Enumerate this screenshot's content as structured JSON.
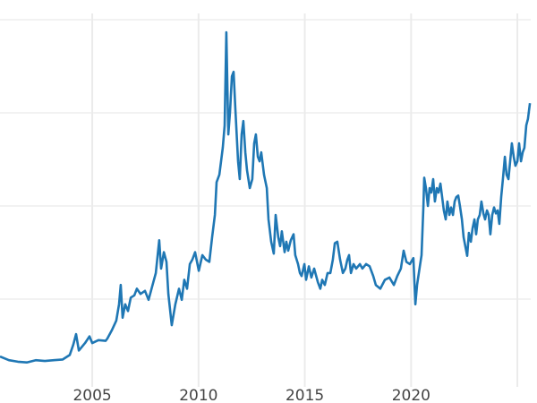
{
  "chart_data": {
    "type": "line",
    "title": "",
    "xlabel": "",
    "ylabel": "",
    "xlim": [
      2000.66,
      2025.6
    ],
    "ylim": [
      0,
      51.5
    ],
    "x_ticks": [
      2005,
      2010,
      2015,
      2020,
      2025
    ],
    "x_tick_labels": [
      "2005",
      "2010",
      "2015",
      "2020",
      ""
    ],
    "y_gridlines": [
      12.5,
      25,
      37.5,
      50
    ],
    "grid": true,
    "legend": "none",
    "line_color": "#1f77b4",
    "grid_color": "#ebebeb",
    "series": [
      {
        "points": [
          [
            2000.66,
            4.8
          ],
          [
            2001.08,
            4.3
          ],
          [
            2001.5,
            4.1
          ],
          [
            2001.92,
            4.0
          ],
          [
            2002.34,
            4.3
          ],
          [
            2002.77,
            4.2
          ],
          [
            2003.19,
            4.3
          ],
          [
            2003.61,
            4.4
          ],
          [
            2003.94,
            5.0
          ],
          [
            2004.11,
            6.4
          ],
          [
            2004.24,
            7.8
          ],
          [
            2004.37,
            5.6
          ],
          [
            2004.66,
            6.6
          ],
          [
            2004.87,
            7.5
          ],
          [
            2005.0,
            6.6
          ],
          [
            2005.29,
            7.0
          ],
          [
            2005.63,
            6.9
          ],
          [
            2005.71,
            7.2
          ],
          [
            2005.92,
            8.3
          ],
          [
            2006.13,
            9.6
          ],
          [
            2006.26,
            11.8
          ],
          [
            2006.34,
            14.4
          ],
          [
            2006.43,
            10.0
          ],
          [
            2006.55,
            11.8
          ],
          [
            2006.68,
            10.9
          ],
          [
            2006.81,
            12.7
          ],
          [
            2006.98,
            13.0
          ],
          [
            2007.1,
            13.9
          ],
          [
            2007.27,
            13.2
          ],
          [
            2007.48,
            13.6
          ],
          [
            2007.65,
            12.4
          ],
          [
            2007.82,
            14.2
          ],
          [
            2007.99,
            16.0
          ],
          [
            2008.15,
            20.4
          ],
          [
            2008.24,
            16.6
          ],
          [
            2008.37,
            18.8
          ],
          [
            2008.49,
            17.5
          ],
          [
            2008.58,
            13.2
          ],
          [
            2008.74,
            9.0
          ],
          [
            2008.91,
            11.8
          ],
          [
            2009.08,
            13.9
          ],
          [
            2009.21,
            12.4
          ],
          [
            2009.33,
            15.1
          ],
          [
            2009.46,
            13.9
          ],
          [
            2009.59,
            17.2
          ],
          [
            2009.71,
            17.8
          ],
          [
            2009.84,
            18.8
          ],
          [
            2010.01,
            16.3
          ],
          [
            2010.18,
            18.4
          ],
          [
            2010.34,
            17.8
          ],
          [
            2010.51,
            17.5
          ],
          [
            2010.64,
            20.8
          ],
          [
            2010.77,
            23.8
          ],
          [
            2010.85,
            28.2
          ],
          [
            2010.98,
            29.2
          ],
          [
            2011.06,
            31.0
          ],
          [
            2011.14,
            32.8
          ],
          [
            2011.23,
            35.8
          ],
          [
            2011.31,
            48.3
          ],
          [
            2011.4,
            34.6
          ],
          [
            2011.48,
            37.6
          ],
          [
            2011.57,
            42.4
          ],
          [
            2011.65,
            43.0
          ],
          [
            2011.73,
            38.2
          ],
          [
            2011.86,
            31.0
          ],
          [
            2011.94,
            28.6
          ],
          [
            2012.03,
            34.6
          ],
          [
            2012.11,
            36.4
          ],
          [
            2012.2,
            32.2
          ],
          [
            2012.28,
            29.8
          ],
          [
            2012.41,
            27.4
          ],
          [
            2012.53,
            28.6
          ],
          [
            2012.62,
            33.4
          ],
          [
            2012.7,
            34.6
          ],
          [
            2012.79,
            31.6
          ],
          [
            2012.87,
            31.0
          ],
          [
            2012.95,
            32.2
          ],
          [
            2013.08,
            29.2
          ],
          [
            2013.21,
            27.4
          ],
          [
            2013.29,
            23.2
          ],
          [
            2013.42,
            20.2
          ],
          [
            2013.54,
            18.6
          ],
          [
            2013.63,
            23.8
          ],
          [
            2013.75,
            20.8
          ],
          [
            2013.84,
            19.6
          ],
          [
            2013.92,
            21.6
          ],
          [
            2014.05,
            18.8
          ],
          [
            2014.13,
            20.2
          ],
          [
            2014.22,
            19.0
          ],
          [
            2014.34,
            20.4
          ],
          [
            2014.47,
            21.2
          ],
          [
            2014.55,
            18.4
          ],
          [
            2014.68,
            17.2
          ],
          [
            2014.77,
            16.0
          ],
          [
            2014.85,
            15.6
          ],
          [
            2014.98,
            17.2
          ],
          [
            2015.06,
            15.1
          ],
          [
            2015.19,
            16.9
          ],
          [
            2015.31,
            15.4
          ],
          [
            2015.44,
            16.6
          ],
          [
            2015.61,
            14.8
          ],
          [
            2015.73,
            13.9
          ],
          [
            2015.82,
            15.1
          ],
          [
            2015.94,
            14.4
          ],
          [
            2016.07,
            16.0
          ],
          [
            2016.2,
            16.0
          ],
          [
            2016.32,
            17.8
          ],
          [
            2016.41,
            20.0
          ],
          [
            2016.53,
            20.2
          ],
          [
            2016.66,
            17.8
          ],
          [
            2016.79,
            16.0
          ],
          [
            2016.91,
            16.6
          ],
          [
            2017.0,
            17.8
          ],
          [
            2017.08,
            18.4
          ],
          [
            2017.17,
            16.0
          ],
          [
            2017.29,
            17.2
          ],
          [
            2017.42,
            16.6
          ],
          [
            2017.59,
            17.2
          ],
          [
            2017.71,
            16.6
          ],
          [
            2017.88,
            17.2
          ],
          [
            2018.05,
            16.9
          ],
          [
            2018.22,
            15.6
          ],
          [
            2018.34,
            14.4
          ],
          [
            2018.55,
            13.9
          ],
          [
            2018.77,
            15.1
          ],
          [
            2018.98,
            15.4
          ],
          [
            2019.19,
            14.4
          ],
          [
            2019.35,
            15.6
          ],
          [
            2019.52,
            16.6
          ],
          [
            2019.65,
            19.0
          ],
          [
            2019.78,
            17.5
          ],
          [
            2019.94,
            17.2
          ],
          [
            2020.11,
            18.0
          ],
          [
            2020.2,
            11.8
          ],
          [
            2020.28,
            14.4
          ],
          [
            2020.41,
            16.9
          ],
          [
            2020.49,
            18.4
          ],
          [
            2020.58,
            25.0
          ],
          [
            2020.62,
            28.8
          ],
          [
            2020.7,
            27.4
          ],
          [
            2020.79,
            25.0
          ],
          [
            2020.87,
            27.4
          ],
          [
            2020.95,
            26.8
          ],
          [
            2021.04,
            28.6
          ],
          [
            2021.12,
            25.6
          ],
          [
            2021.21,
            27.4
          ],
          [
            2021.29,
            26.8
          ],
          [
            2021.38,
            28.0
          ],
          [
            2021.46,
            26.2
          ],
          [
            2021.54,
            24.4
          ],
          [
            2021.63,
            23.2
          ],
          [
            2021.71,
            25.6
          ],
          [
            2021.8,
            23.8
          ],
          [
            2021.88,
            24.8
          ],
          [
            2021.97,
            23.8
          ],
          [
            2022.05,
            25.6
          ],
          [
            2022.13,
            26.2
          ],
          [
            2022.22,
            26.4
          ],
          [
            2022.3,
            25.0
          ],
          [
            2022.39,
            23.2
          ],
          [
            2022.47,
            20.8
          ],
          [
            2022.55,
            19.6
          ],
          [
            2022.64,
            18.3
          ],
          [
            2022.72,
            21.4
          ],
          [
            2022.81,
            20.2
          ],
          [
            2022.89,
            22.0
          ],
          [
            2022.98,
            23.2
          ],
          [
            2023.06,
            21.2
          ],
          [
            2023.14,
            23.2
          ],
          [
            2023.23,
            23.8
          ],
          [
            2023.31,
            25.6
          ],
          [
            2023.4,
            24.0
          ],
          [
            2023.48,
            23.2
          ],
          [
            2023.57,
            24.4
          ],
          [
            2023.65,
            23.8
          ],
          [
            2023.73,
            21.2
          ],
          [
            2023.82,
            23.8
          ],
          [
            2023.9,
            24.8
          ],
          [
            2023.99,
            24.0
          ],
          [
            2024.07,
            24.4
          ],
          [
            2024.15,
            22.6
          ],
          [
            2024.24,
            26.2
          ],
          [
            2024.32,
            28.6
          ],
          [
            2024.41,
            31.6
          ],
          [
            2024.49,
            29.2
          ],
          [
            2024.58,
            28.6
          ],
          [
            2024.66,
            31.0
          ],
          [
            2024.74,
            33.4
          ],
          [
            2024.83,
            31.6
          ],
          [
            2024.91,
            30.4
          ],
          [
            2025.0,
            31.0
          ],
          [
            2025.08,
            33.4
          ],
          [
            2025.17,
            31.0
          ],
          [
            2025.25,
            32.2
          ],
          [
            2025.33,
            32.8
          ],
          [
            2025.42,
            35.8
          ],
          [
            2025.5,
            36.7
          ],
          [
            2025.59,
            38.8
          ]
        ]
      }
    ]
  }
}
